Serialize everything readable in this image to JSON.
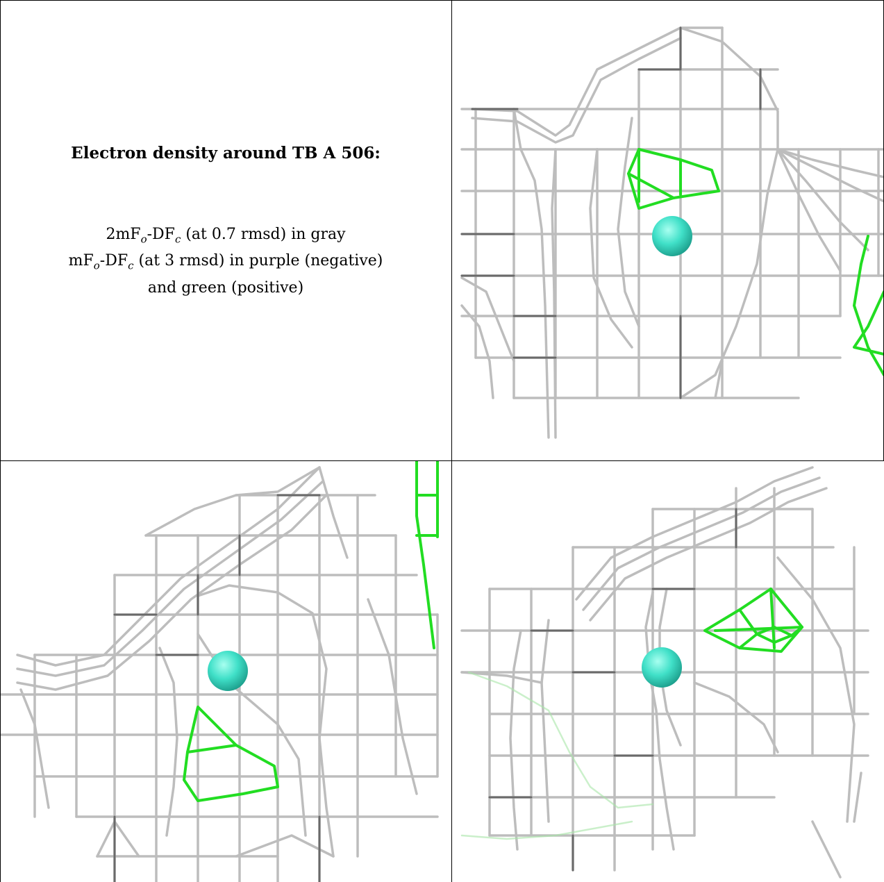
{
  "caption": {
    "title": "Electron density around TB A 506:",
    "line1": "2mFo-DFc (at 0.7 rmsd) in gray",
    "line2": "mFo-DFc (at 3 rmsd) in purple (negative)",
    "line3": "and green (positive)"
  },
  "colors": {
    "map_2fofc": "#b8b8b8",
    "map_2fofc_dark": "#5a5a5a",
    "map_fofc_positive": "#22dd22",
    "map_fofc_negative": "#cc33cc",
    "atom": "#40e0c8",
    "border": "#000000"
  },
  "panels": [
    {
      "name": "view-1",
      "atom": "TB A 506"
    },
    {
      "name": "view-2",
      "atom": "TB A 506"
    },
    {
      "name": "view-3",
      "atom": "TB A 506"
    }
  ]
}
